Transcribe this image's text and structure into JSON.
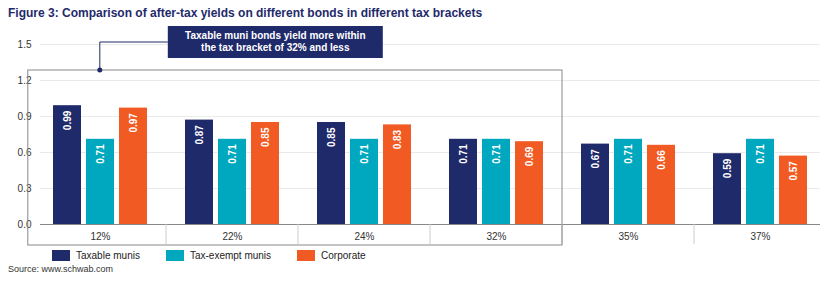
{
  "chart_data": {
    "type": "bar",
    "title": "Figure 3: Comparison of after-tax yields on different bonds in different tax brackets",
    "categories": [
      "12%",
      "22%",
      "24%",
      "32%",
      "35%",
      "37%"
    ],
    "series": [
      {
        "name": "Taxable munis",
        "color": "#1f2a6b",
        "values": [
          0.99,
          0.87,
          0.85,
          0.71,
          0.67,
          0.59
        ]
      },
      {
        "name": "Tax-exempt munis",
        "color": "#00a8bf",
        "values": [
          0.71,
          0.71,
          0.71,
          0.71,
          0.71,
          0.71
        ]
      },
      {
        "name": "Corporate",
        "color": "#f15a22",
        "values": [
          0.97,
          0.85,
          0.83,
          0.69,
          0.66,
          0.57
        ]
      }
    ],
    "ylim": [
      0,
      1.5
    ],
    "yticks": [
      {
        "value": 0,
        "label": "0.0"
      },
      0.3,
      0.6,
      0.9,
      1.2,
      1.5
    ],
    "grid": true,
    "data_labels": true,
    "legend": "bottom",
    "annotation": {
      "text": "Taxable muni bonds yield more within the tax bracket of 32% and less",
      "from": "12%",
      "to": "32%"
    },
    "source": "Source: www.schwab.com"
  }
}
